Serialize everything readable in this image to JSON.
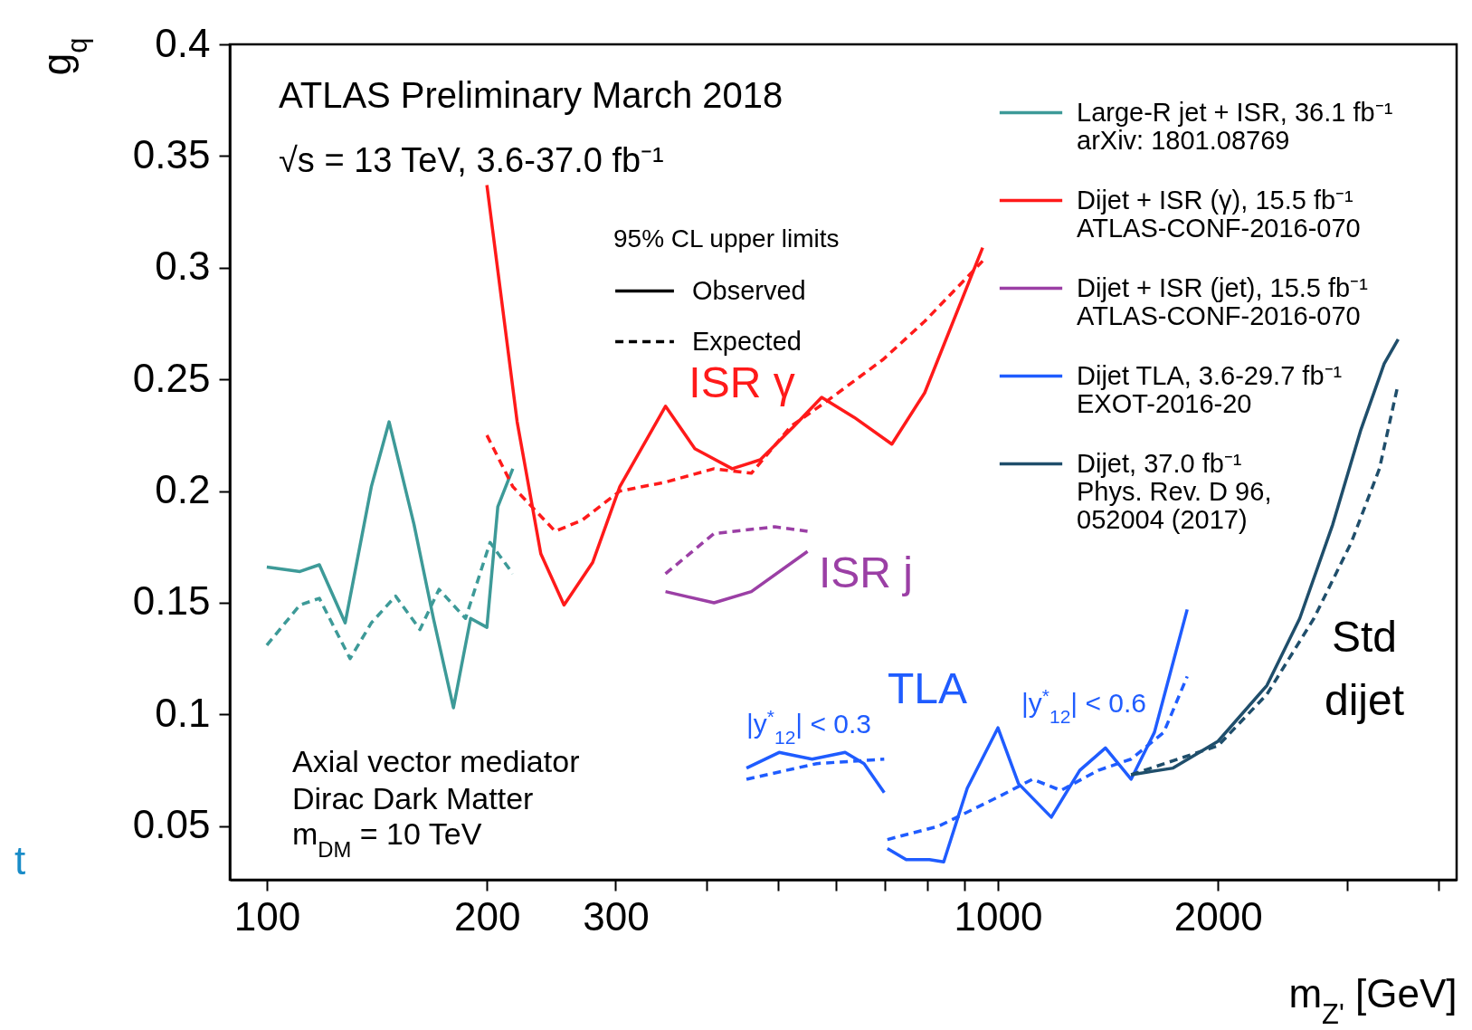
{
  "chart_data": {
    "type": "line",
    "title": "ATLAS Preliminary March 2018",
    "subtitle": "√s = 13 TeV, 3.6-37.0 fb⁻¹",
    "xlabel": "m$_{Z'}$ [GeV]",
    "ylabel": "g$_{q}$",
    "legend_title": "95% CL upper limits",
    "log": "x",
    "grid": false,
    "legend": "top right",
    "xlim": [
      89,
      4240
    ],
    "ylim": [
      0.026,
      0.4
    ],
    "xticks": [
      100,
      200,
      300,
      {
        "value": 400,
        "label": null
      },
      {
        "value": 500,
        "label": null
      },
      {
        "value": 600,
        "label": null
      },
      {
        "value": 700,
        "label": null
      },
      {
        "value": 800,
        "label": null
      },
      {
        "value": 900,
        "label": null
      },
      1000,
      2000,
      {
        "value": 3000,
        "label": null
      },
      {
        "value": 4000,
        "label": null
      }
    ],
    "yticks": [
      0.05,
      0.1,
      0.15,
      0.2,
      0.25,
      0.3,
      0.35,
      0.4
    ],
    "series": [
      {
        "name": "Large-R jet + ISR, 36.1 fb⁻¹\narXiv: 1801.08769",
        "color": "#3d9a98",
        "line_style": "solid",
        "x": [
          100,
          111,
          118,
          128,
          139,
          147,
          159,
          169,
          180,
          190,
          200,
          207,
          217
        ],
        "values": [
          0.166,
          0.164,
          0.167,
          0.141,
          0.202,
          0.231,
          0.185,
          0.143,
          0.103,
          0.143,
          0.139,
          0.193,
          0.21
        ]
      },
      {
        "color": "#3d9a98",
        "line_style": "dashed",
        "x": [
          100,
          111,
          118,
          130,
          139,
          150,
          162,
          172,
          187,
          202,
          217
        ],
        "values": [
          0.131,
          0.149,
          0.152,
          0.125,
          0.141,
          0.153,
          0.138,
          0.156,
          0.143,
          0.177,
          0.163
        ]
      },
      {
        "name": "Dijet + ISR (γ), 15.5 fb⁻¹\nATLAS-CONF-2016-070",
        "color": "#ff1a1a",
        "line_style": "solid",
        "x": [
          200,
          220,
          237,
          255,
          279,
          304,
          351,
          385,
          433,
          473,
          526,
          574,
          636,
          716,
          794,
          953
        ],
        "values": [
          0.337,
          0.231,
          0.172,
          0.149,
          0.168,
          0.202,
          0.238,
          0.219,
          0.21,
          0.214,
          0.229,
          0.242,
          0.233,
          0.221,
          0.244,
          0.309
        ]
      },
      {
        "color": "#ff1a1a",
        "line_style": "dashed",
        "x": [
          200,
          217,
          248,
          270,
          304,
          351,
          409,
          460,
          521,
          582,
          697,
          794,
          953
        ],
        "values": [
          0.225,
          0.202,
          0.182,
          0.187,
          0.2,
          0.204,
          0.21,
          0.208,
          0.229,
          0.24,
          0.259,
          0.276,
          0.303
        ]
      },
      {
        "name": "Dijet + ISR (jet), 15.5 fb⁻¹\nATLAS-CONF-2016-070",
        "color": "#9b3fa5",
        "line_style": "solid",
        "x": [
          351,
          409,
          460,
          549
        ],
        "values": [
          0.155,
          0.15,
          0.155,
          0.173
        ]
      },
      {
        "color": "#9b3fa5",
        "line_style": "dashed",
        "x": [
          351,
          409,
          495,
          549
        ],
        "values": [
          0.163,
          0.181,
          0.184,
          0.182
        ]
      },
      {
        "name": "Dijet TLA, 3.6-29.7 fb⁻¹\nEXOT-2016-20",
        "color": "#1f5cff",
        "line_style": "solid",
        "x": [
          453,
          502,
          557,
          618,
          656,
          699
        ],
        "values": [
          0.076,
          0.083,
          0.08,
          0.083,
          0.078,
          0.065
        ]
      },
      {
        "color": "#1f5cff",
        "line_style": "dashed",
        "x": [
          453,
          565,
          699
        ],
        "values": [
          0.071,
          0.078,
          0.08
        ]
      },
      {
        "color": "#1f5cff",
        "line_style": "solid",
        "x": [
          706,
          749,
          806,
          843,
          908,
          1000,
          1067,
          1183,
          1294,
          1403,
          1521,
          1637,
          1815
        ],
        "values": [
          0.04,
          0.035,
          0.035,
          0.034,
          0.067,
          0.094,
          0.069,
          0.054,
          0.075,
          0.085,
          0.071,
          0.092,
          0.147
        ]
      },
      {
        "color": "#1f5cff",
        "line_style": "dashed",
        "x": [
          706,
          830,
          1000,
          1115,
          1219,
          1372,
          1521,
          1686,
          1815
        ],
        "values": [
          0.044,
          0.05,
          0.063,
          0.071,
          0.066,
          0.075,
          0.08,
          0.092,
          0.117
        ]
      },
      {
        "name": "Dijet, 37.0 fb⁻¹\nPhys. Rev. D 96,\n052004 (2017)",
        "color": "#1f4e6b",
        "line_style": "solid",
        "x": [
          1521,
          1736,
          2000,
          2333,
          2587,
          2870,
          3133,
          3375,
          3527
        ],
        "values": [
          0.073,
          0.076,
          0.088,
          0.113,
          0.143,
          0.185,
          0.227,
          0.257,
          0.268
        ]
      },
      {
        "color": "#1f4e6b",
        "line_style": "dashed",
        "x": [
          1521,
          2000,
          2333,
          2705,
          3043,
          3325,
          3527
        ],
        "values": [
          0.073,
          0.086,
          0.109,
          0.143,
          0.177,
          0.21,
          0.248
        ]
      }
    ],
    "annotations": [
      "Observed",
      "Expected",
      "Axial vector mediator",
      "Dirac Dark Matter",
      "m$_{DM}$ = 10 TeV",
      "t",
      "ISR γ",
      "ISR j",
      "TLA",
      "|y$^{*}$$_{12}$| < 0.3",
      "|y$^{*}$$_{12}$| < 0.6",
      "Std",
      "dijet"
    ]
  }
}
